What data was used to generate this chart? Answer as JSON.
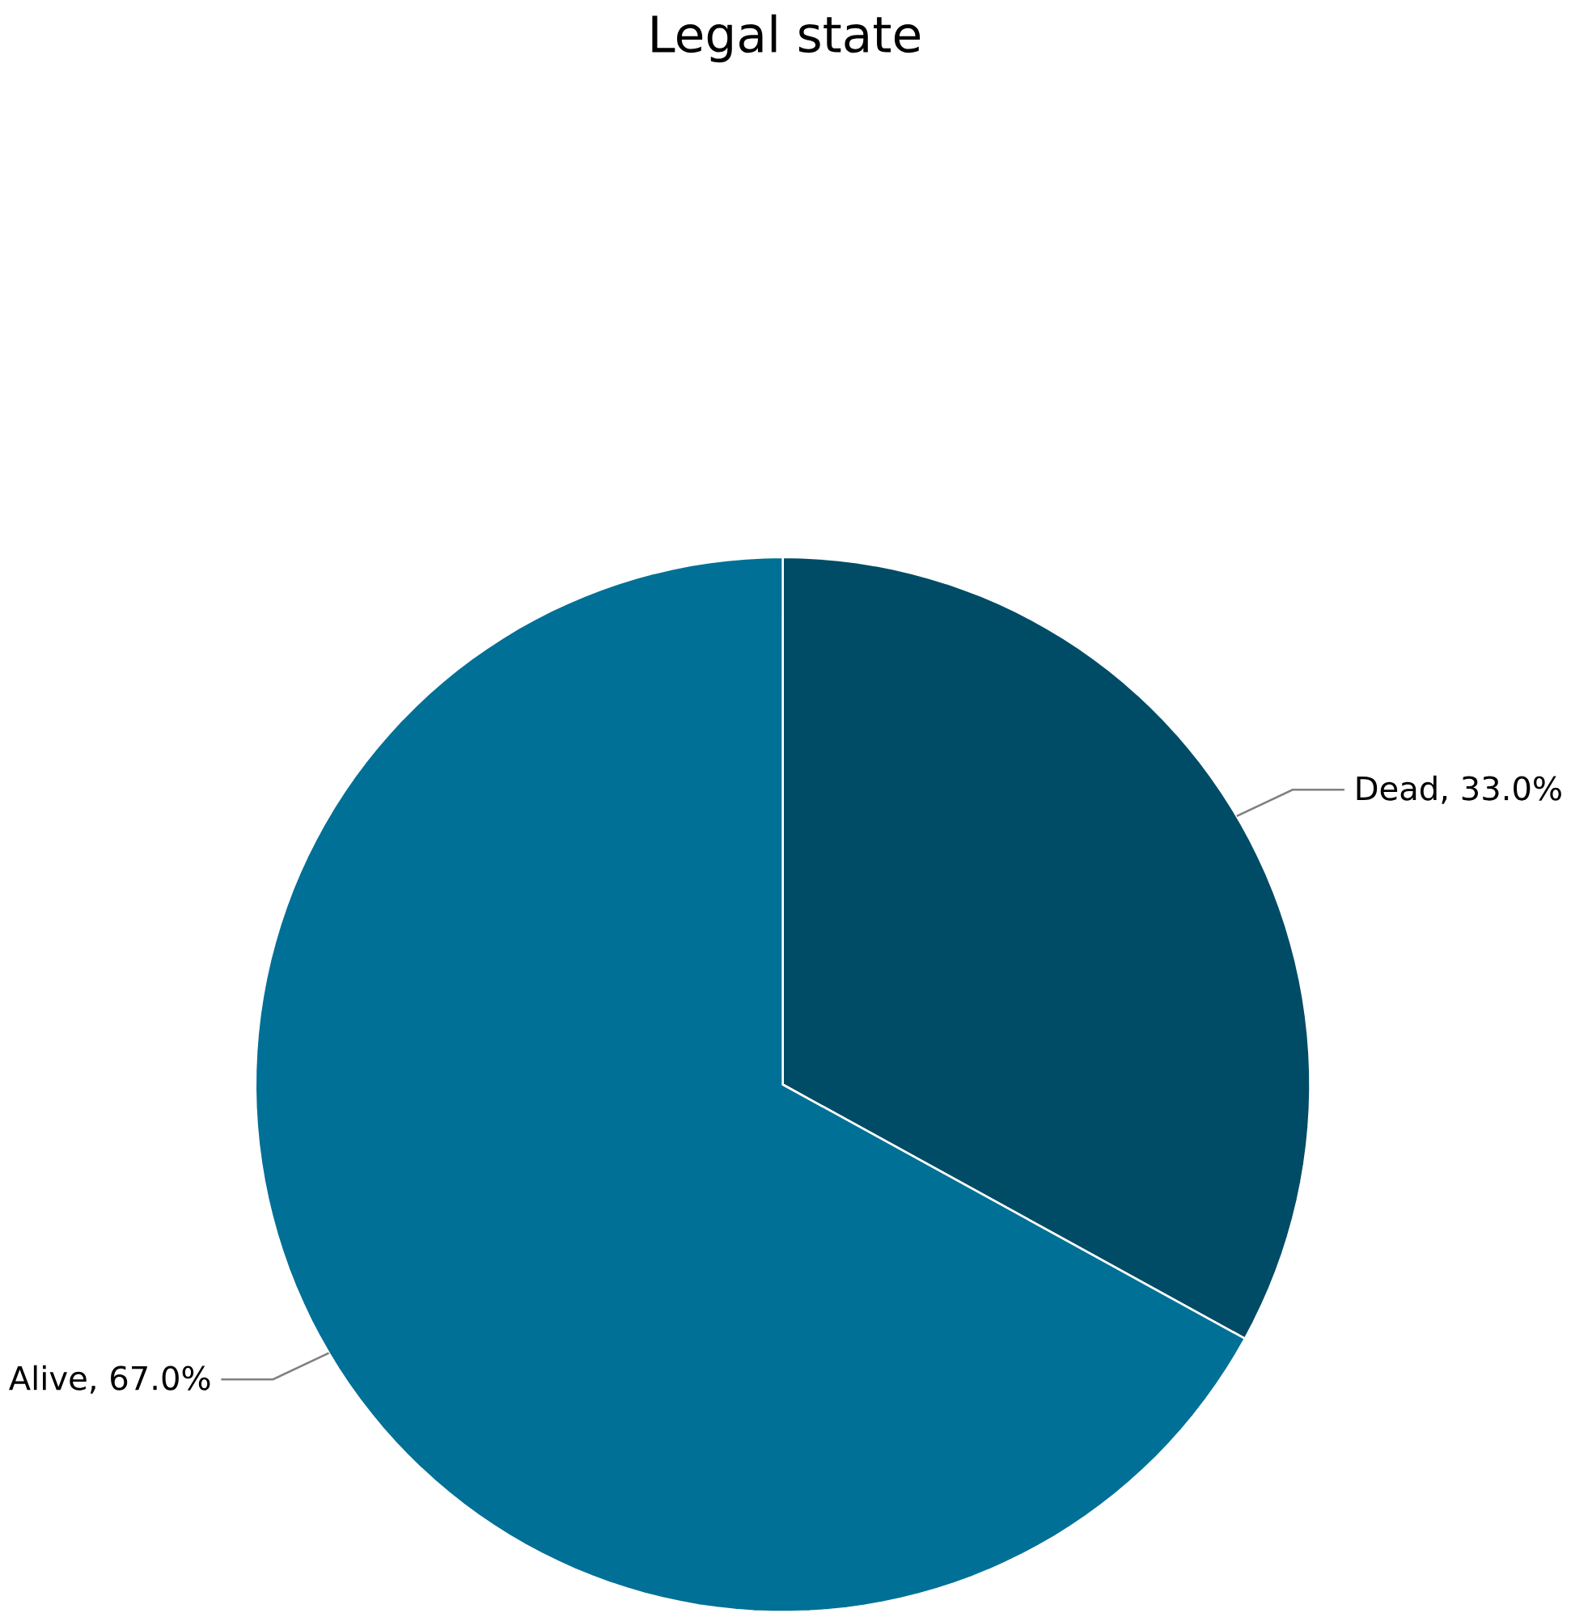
{
  "chart_data": {
    "type": "pie",
    "title": "Legal state",
    "categories": [
      "Dead, 33.0%",
      "Alive, 67.0%"
    ],
    "values": [
      33.0,
      67.0
    ],
    "colors": [
      "#004c66",
      "#007096"
    ]
  }
}
